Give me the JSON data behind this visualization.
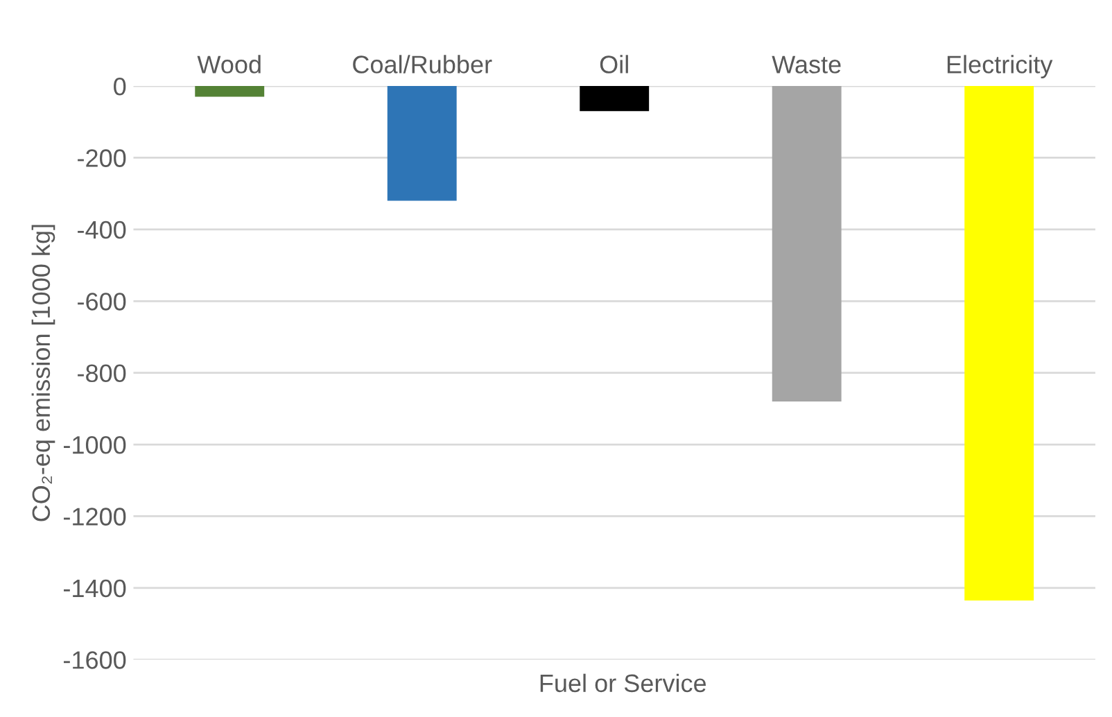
{
  "chart_data": {
    "type": "bar",
    "xlabel": "Fuel or Service",
    "ylabel": "CO₂-eq emission [1000 kg]",
    "categories": [
      "Wood",
      "Coal/Rubber",
      "Oil",
      "Waste",
      "Electricity"
    ],
    "values": [
      -30,
      -320,
      -70,
      -880,
      -1435
    ],
    "colors": [
      "#548235",
      "#2e75b6",
      "#000000",
      "#a5a5a5",
      "#ffff00"
    ],
    "ylim": [
      -1600,
      0
    ],
    "yticks": [
      -1600,
      -1400,
      -1200,
      -1000,
      -800,
      -600,
      -400,
      -200,
      0
    ],
    "grid": "y"
  }
}
